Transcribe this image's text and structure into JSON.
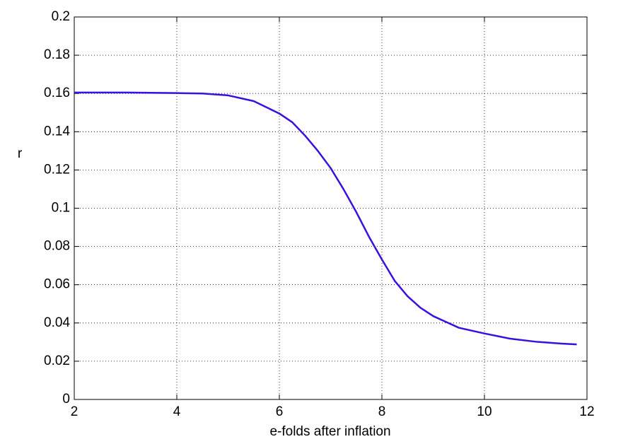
{
  "chart_data": {
    "type": "line",
    "xlabel": "e-folds after inflation",
    "ylabel": "r",
    "series": [
      {
        "color": "#3a10e0",
        "x": [
          2,
          3,
          4,
          4.5,
          5,
          5.5,
          6,
          6.25,
          6.5,
          6.75,
          7,
          7.25,
          7.5,
          7.75,
          8,
          8.25,
          8.5,
          8.75,
          9,
          9.5,
          10,
          10.5,
          11,
          11.5,
          11.8
        ],
        "values": [
          0.1605,
          0.1605,
          0.1602,
          0.16,
          0.159,
          0.156,
          0.1495,
          0.145,
          0.138,
          0.13,
          0.121,
          0.11,
          0.098,
          0.085,
          0.0732,
          0.062,
          0.054,
          0.048,
          0.0436,
          0.0375,
          0.0345,
          0.0318,
          0.0302,
          0.0292,
          0.0288
        ]
      }
    ],
    "xlim": [
      2,
      12
    ],
    "xticks": [
      2,
      4,
      6,
      8,
      10,
      12
    ],
    "ylim": [
      0,
      0.2
    ],
    "yticks": [
      0,
      0.02,
      0.04,
      0.06,
      0.08,
      0.1,
      0.12,
      0.14,
      0.16,
      0.18,
      0.2
    ],
    "grid": true
  }
}
